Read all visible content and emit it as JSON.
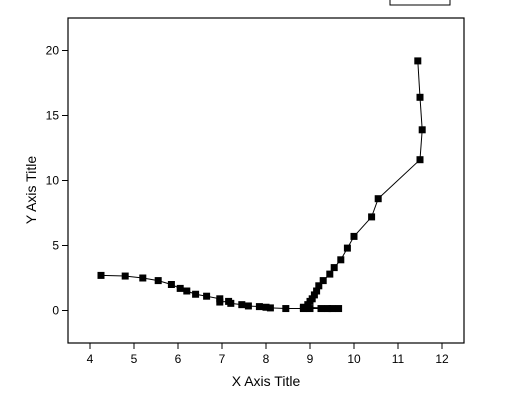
{
  "chart_data": {
    "type": "line",
    "x_label": "X Axis Title",
    "y_label": "Y Axis Title",
    "x": [
      4.25,
      4.8,
      5.2,
      5.55,
      5.85,
      6.05,
      6.2,
      6.4,
      6.65,
      6.95,
      6.95,
      7.15,
      7.2,
      7.45,
      7.6,
      7.85,
      8.0,
      8.1,
      8.45,
      8.85,
      9.0,
      9.25,
      9.4,
      9.5,
      9.65,
      8.85,
      8.95,
      9.0,
      9.05,
      9.1,
      9.15,
      9.2,
      9.3,
      9.45,
      9.55,
      9.7,
      9.85,
      10.0,
      10.4,
      10.55,
      11.5,
      11.55,
      11.5,
      11.45
    ],
    "series": [
      {
        "color": "#000000",
        "values": [
          2.7,
          2.65,
          2.5,
          2.3,
          2.0,
          1.7,
          1.5,
          1.25,
          1.1,
          0.9,
          0.65,
          0.7,
          0.55,
          0.45,
          0.35,
          0.3,
          0.25,
          0.2,
          0.15,
          0.15,
          0.15,
          0.15,
          0.15,
          0.15,
          0.15,
          0.25,
          0.45,
          0.7,
          0.9,
          1.2,
          1.5,
          1.9,
          2.3,
          2.8,
          3.3,
          3.9,
          4.8,
          5.7,
          7.2,
          8.6,
          11.6,
          13.9,
          16.4,
          19.2
        ]
      }
    ],
    "xlim": [
      3.5,
      12.5
    ],
    "ylim": [
      -2.5,
      22.5
    ],
    "xticks": [
      4,
      5,
      6,
      7,
      8,
      9,
      10,
      11,
      12
    ],
    "yticks": [
      0,
      5,
      10,
      15,
      20
    ]
  }
}
